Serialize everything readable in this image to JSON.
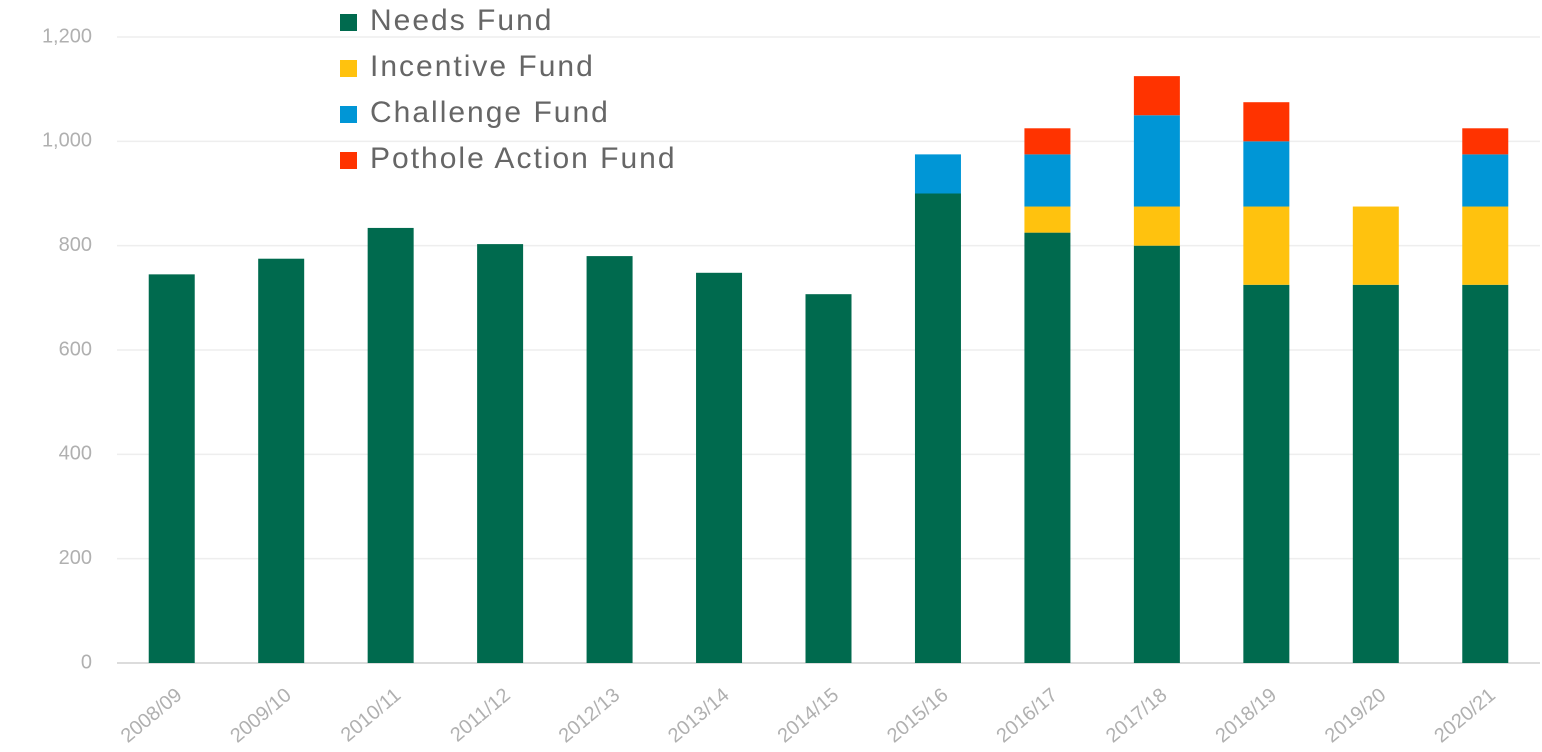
{
  "chart_data": {
    "type": "stacked_bar",
    "categories": [
      "2008/09",
      "2009/10",
      "2010/11",
      "2011/12",
      "2012/13",
      "2013/14",
      "2014/15",
      "2015/16",
      "2016/17",
      "2017/18",
      "2018/19",
      "2019/20",
      "2020/21"
    ],
    "series": [
      {
        "name": "Needs Fund",
        "color": "#006a4e",
        "values": [
          745,
          775,
          834,
          803,
          780,
          748,
          707,
          900,
          825,
          800,
          725,
          725,
          725
        ]
      },
      {
        "name": "Incentive Fund",
        "color": "#ffc20e",
        "values": [
          null,
          null,
          null,
          null,
          null,
          null,
          null,
          null,
          50,
          75,
          150,
          150,
          150
        ]
      },
      {
        "name": "Challenge Fund",
        "color": "#0096d6",
        "values": [
          null,
          null,
          null,
          null,
          null,
          null,
          null,
          75,
          100,
          175,
          125,
          null,
          100
        ]
      },
      {
        "name": "Pothole Action Fund",
        "color": "#ff3300",
        "values": [
          null,
          null,
          null,
          null,
          null,
          null,
          null,
          null,
          50,
          75,
          75,
          null,
          50
        ]
      }
    ],
    "ylim": [
      0,
      1200
    ],
    "yticks": [
      0,
      200,
      400,
      600,
      800,
      {
        "value": 1000,
        "label": "1,000"
      },
      {
        "value": 1200,
        "label": "1,200"
      }
    ],
    "grid": true,
    "legend": "upper left"
  }
}
